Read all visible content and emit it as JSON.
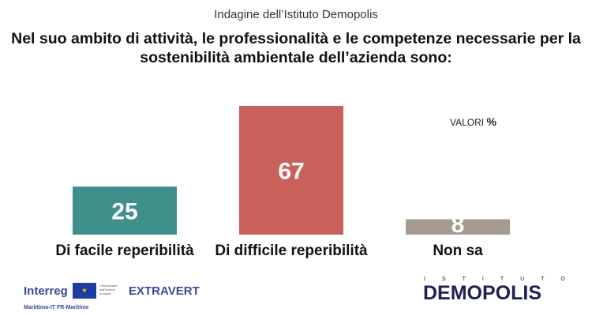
{
  "header": {
    "supertitle": "Indagine dell’Istituto Demopolis",
    "unit_label": "VALORI",
    "unit_symbol": "%"
  },
  "chart_data": {
    "type": "bar",
    "title": "Nel suo ambito di attività, le professionalità e le competenze necessarie per la sostenibilità ambientale dell’azienda sono:",
    "categories": [
      "Di facile reperibilità",
      "Di difficile reperibilità",
      "Non sa"
    ],
    "values": [
      25,
      67,
      8
    ],
    "colors": [
      "#3f8f8a",
      "#c9605a",
      "#a59c8f"
    ],
    "ylim": [
      0,
      100
    ],
    "xlabel": "",
    "ylabel": ""
  },
  "footer": {
    "interreg": "Interreg",
    "eu_text": "Cofinanziato dall'Unione europea",
    "extravert": "EXTRAVERT",
    "maritime": "Marittimo-IT FR-Maritime",
    "istituto": "ISTITUTO",
    "demopolis": "DEMOPOLIS"
  }
}
